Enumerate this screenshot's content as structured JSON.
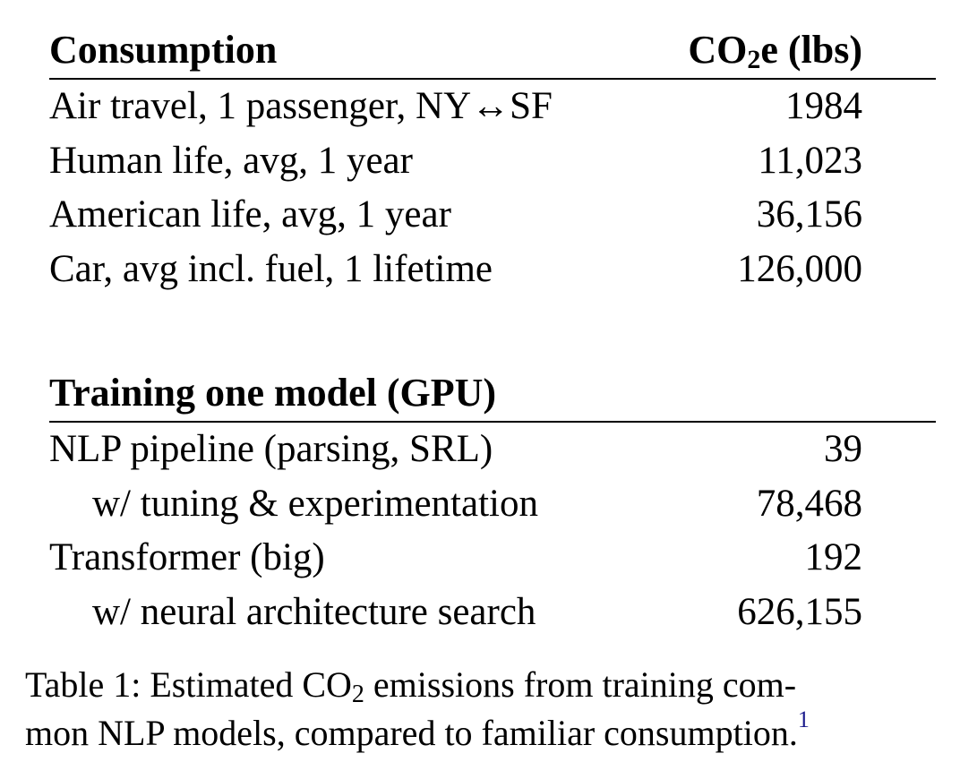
{
  "table": {
    "sections": [
      {
        "header_label": "Consumption",
        "header_value_prefix": "CO",
        "header_value_sub": "2",
        "header_value_suffix": "e (lbs)",
        "rows": [
          {
            "label": "Air travel, 1 passenger, NY↔SF",
            "value": "1984",
            "indent": false
          },
          {
            "label": "Human life, avg, 1 year",
            "value": "11,023",
            "indent": false
          },
          {
            "label": "American life, avg, 1 year",
            "value": "36,156",
            "indent": false
          },
          {
            "label": "Car, avg incl. fuel, 1 lifetime",
            "value": "126,000",
            "indent": false
          }
        ]
      },
      {
        "header_label": "Training one model (GPU)",
        "rows": [
          {
            "label": "NLP pipeline (parsing, SRL)",
            "value": "39",
            "indent": false
          },
          {
            "label": "w/ tuning & experimentation",
            "value": "78,468",
            "indent": true
          },
          {
            "label": "Transformer (big)",
            "value": "192",
            "indent": false
          },
          {
            "label": "w/ neural architecture search",
            "value": "626,155",
            "indent": true
          }
        ]
      }
    ]
  },
  "caption": {
    "line1_prefix": "Table 1: Estimated CO",
    "line1_sub": "2",
    "line1_suffix": " emissions from training com-",
    "line2": "mon NLP models, compared to familiar consumption.",
    "footnote_marker": "1"
  }
}
